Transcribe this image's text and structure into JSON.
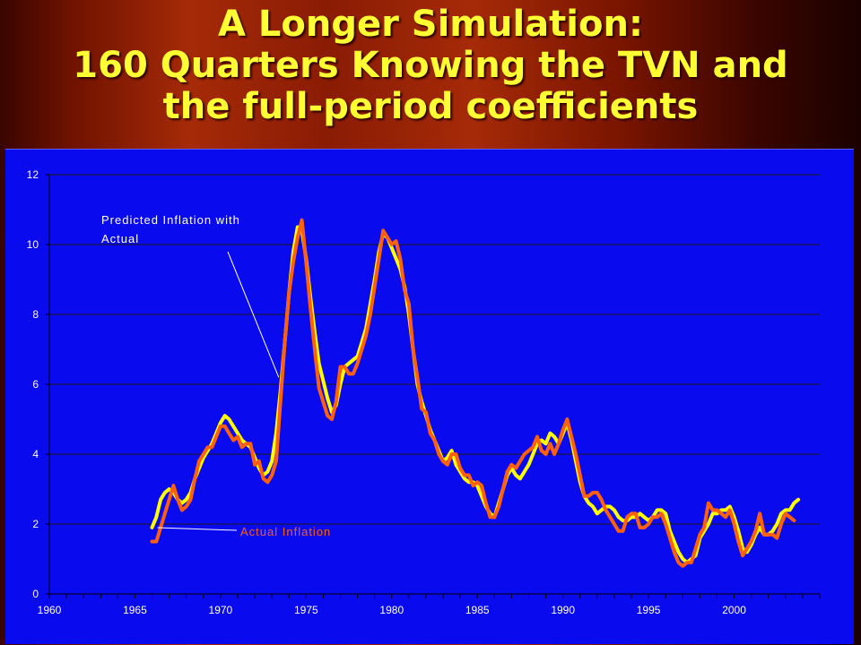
{
  "slide": {
    "title_line1": "A Longer Simulation:",
    "title_line2": "160 Quarters Knowing the TVN and",
    "title_line3": "the full-period coefficients"
  },
  "colors": {
    "background_panel": "#0a0aee",
    "predicted": "#ffff00",
    "actual": "#ff6010",
    "title": "#ffff33"
  },
  "chart_data": {
    "type": "line",
    "xlim": [
      1960,
      2005
    ],
    "ylim": [
      0,
      12
    ],
    "xticks": [
      "1960",
      "1965",
      "1970",
      "1975",
      "1980",
      "1985",
      "1990",
      "1995",
      "2000"
    ],
    "yticks": [
      "0",
      "2",
      "4",
      "6",
      "8",
      "10",
      "12"
    ],
    "grid": "horizontal",
    "annotations": [
      {
        "text": "Predicted Inflation with Actual",
        "series": "predicted",
        "point": [
          1973.4,
          6.2
        ]
      },
      {
        "text": "Actual Inflation",
        "series": "actual",
        "point": [
          1966.0,
          2.0
        ]
      }
    ],
    "series": [
      {
        "name": "predicted",
        "color": "#ffff00",
        "points": [
          [
            1966.0,
            1.9
          ],
          [
            1966.25,
            2.2
          ],
          [
            1966.5,
            2.7
          ],
          [
            1966.75,
            2.9
          ],
          [
            1967.0,
            3.0
          ],
          [
            1967.25,
            2.9
          ],
          [
            1967.5,
            2.7
          ],
          [
            1967.75,
            2.6
          ],
          [
            1968.0,
            2.7
          ],
          [
            1968.25,
            2.9
          ],
          [
            1968.5,
            3.3
          ],
          [
            1968.75,
            3.6
          ],
          [
            1969.0,
            3.9
          ],
          [
            1969.25,
            4.1
          ],
          [
            1969.5,
            4.3
          ],
          [
            1969.75,
            4.6
          ],
          [
            1970.0,
            4.9
          ],
          [
            1970.25,
            5.1
          ],
          [
            1970.5,
            5.0
          ],
          [
            1970.75,
            4.8
          ],
          [
            1971.0,
            4.6
          ],
          [
            1971.25,
            4.4
          ],
          [
            1971.5,
            4.3
          ],
          [
            1971.75,
            4.2
          ],
          [
            1972.0,
            3.9
          ],
          [
            1972.25,
            3.6
          ],
          [
            1972.5,
            3.4
          ],
          [
            1972.75,
            3.5
          ],
          [
            1973.0,
            3.8
          ],
          [
            1973.25,
            4.6
          ],
          [
            1973.5,
            5.8
          ],
          [
            1973.75,
            7.2
          ],
          [
            1974.0,
            8.6
          ],
          [
            1974.25,
            9.8
          ],
          [
            1974.5,
            10.5
          ],
          [
            1974.75,
            10.4
          ],
          [
            1975.0,
            9.6
          ],
          [
            1975.25,
            8.5
          ],
          [
            1975.5,
            7.5
          ],
          [
            1975.75,
            6.6
          ],
          [
            1976.0,
            6.1
          ],
          [
            1976.25,
            5.6
          ],
          [
            1976.5,
            5.2
          ],
          [
            1976.75,
            5.4
          ],
          [
            1977.0,
            6.0
          ],
          [
            1977.25,
            6.5
          ],
          [
            1977.5,
            6.6
          ],
          [
            1977.75,
            6.7
          ],
          [
            1978.0,
            6.8
          ],
          [
            1978.25,
            7.2
          ],
          [
            1978.5,
            7.6
          ],
          [
            1978.75,
            8.3
          ],
          [
            1979.0,
            9.0
          ],
          [
            1979.25,
            9.8
          ],
          [
            1979.5,
            10.3
          ],
          [
            1979.75,
            10.2
          ],
          [
            1980.0,
            9.9
          ],
          [
            1980.25,
            9.6
          ],
          [
            1980.5,
            9.3
          ],
          [
            1980.75,
            8.8
          ],
          [
            1981.0,
            8.0
          ],
          [
            1981.25,
            7.0
          ],
          [
            1981.5,
            6.0
          ],
          [
            1981.75,
            5.5
          ],
          [
            1982.0,
            5.1
          ],
          [
            1982.25,
            4.7
          ],
          [
            1982.5,
            4.4
          ],
          [
            1982.75,
            4.1
          ],
          [
            1983.0,
            3.8
          ],
          [
            1983.25,
            3.9
          ],
          [
            1983.5,
            4.1
          ],
          [
            1983.75,
            3.7
          ],
          [
            1984.0,
            3.5
          ],
          [
            1984.25,
            3.3
          ],
          [
            1984.5,
            3.2
          ],
          [
            1984.75,
            3.2
          ],
          [
            1985.0,
            3.1
          ],
          [
            1985.25,
            2.8
          ],
          [
            1985.5,
            2.5
          ],
          [
            1985.75,
            2.3
          ],
          [
            1986.0,
            2.2
          ],
          [
            1986.25,
            2.6
          ],
          [
            1986.5,
            3.0
          ],
          [
            1986.75,
            3.4
          ],
          [
            1987.0,
            3.6
          ],
          [
            1987.25,
            3.4
          ],
          [
            1987.5,
            3.3
          ],
          [
            1987.75,
            3.5
          ],
          [
            1988.0,
            3.7
          ],
          [
            1988.25,
            4.0
          ],
          [
            1988.5,
            4.3
          ],
          [
            1988.75,
            4.4
          ],
          [
            1989.0,
            4.3
          ],
          [
            1989.25,
            4.6
          ],
          [
            1989.5,
            4.5
          ],
          [
            1989.75,
            4.3
          ],
          [
            1990.0,
            4.6
          ],
          [
            1990.25,
            4.9
          ],
          [
            1990.5,
            4.4
          ],
          [
            1990.75,
            3.8
          ],
          [
            1991.0,
            3.2
          ],
          [
            1991.25,
            2.8
          ],
          [
            1991.5,
            2.6
          ],
          [
            1991.75,
            2.5
          ],
          [
            1992.0,
            2.3
          ],
          [
            1992.25,
            2.4
          ],
          [
            1992.5,
            2.5
          ],
          [
            1992.75,
            2.5
          ],
          [
            1993.0,
            2.4
          ],
          [
            1993.25,
            2.2
          ],
          [
            1993.5,
            2.1
          ],
          [
            1993.75,
            2.1
          ],
          [
            1994.0,
            2.2
          ],
          [
            1994.25,
            2.2
          ],
          [
            1994.5,
            2.3
          ],
          [
            1994.75,
            2.2
          ],
          [
            1995.0,
            2.1
          ],
          [
            1995.25,
            2.2
          ],
          [
            1995.5,
            2.4
          ],
          [
            1995.75,
            2.4
          ],
          [
            1996.0,
            2.3
          ],
          [
            1996.25,
            1.8
          ],
          [
            1996.5,
            1.5
          ],
          [
            1996.75,
            1.2
          ],
          [
            1997.0,
            1.0
          ],
          [
            1997.25,
            0.9
          ],
          [
            1997.5,
            1.0
          ],
          [
            1997.75,
            1.1
          ],
          [
            1998.0,
            1.6
          ],
          [
            1998.25,
            1.8
          ],
          [
            1998.5,
            2.0
          ],
          [
            1998.75,
            2.3
          ],
          [
            1999.0,
            2.3
          ],
          [
            1999.25,
            2.4
          ],
          [
            1999.5,
            2.4
          ],
          [
            1999.75,
            2.5
          ],
          [
            2000.0,
            2.2
          ],
          [
            2000.25,
            1.8
          ],
          [
            2000.5,
            1.3
          ],
          [
            2000.75,
            1.2
          ],
          [
            2001.0,
            1.4
          ],
          [
            2001.25,
            1.7
          ],
          [
            2001.5,
            1.9
          ],
          [
            2001.75,
            1.7
          ],
          [
            2002.0,
            1.7
          ],
          [
            2002.25,
            1.8
          ],
          [
            2002.5,
            2.0
          ],
          [
            2002.75,
            2.3
          ],
          [
            2003.0,
            2.4
          ],
          [
            2003.25,
            2.4
          ],
          [
            2003.5,
            2.6
          ],
          [
            2003.75,
            2.7
          ]
        ]
      },
      {
        "name": "actual",
        "color": "#ff6010",
        "points": [
          [
            1966.0,
            1.5
          ],
          [
            1966.25,
            1.5
          ],
          [
            1966.5,
            1.9
          ],
          [
            1966.75,
            2.3
          ],
          [
            1967.0,
            2.7
          ],
          [
            1967.25,
            3.1
          ],
          [
            1967.5,
            2.7
          ],
          [
            1967.75,
            2.4
          ],
          [
            1968.0,
            2.5
          ],
          [
            1968.25,
            2.7
          ],
          [
            1968.5,
            3.3
          ],
          [
            1968.75,
            3.8
          ],
          [
            1969.0,
            4.0
          ],
          [
            1969.25,
            4.2
          ],
          [
            1969.5,
            4.2
          ],
          [
            1969.75,
            4.5
          ],
          [
            1970.0,
            4.8
          ],
          [
            1970.25,
            4.8
          ],
          [
            1970.5,
            4.6
          ],
          [
            1970.75,
            4.4
          ],
          [
            1971.0,
            4.5
          ],
          [
            1971.25,
            4.2
          ],
          [
            1971.5,
            4.3
          ],
          [
            1971.75,
            4.3
          ],
          [
            1972.0,
            3.7
          ],
          [
            1972.25,
            3.8
          ],
          [
            1972.5,
            3.3
          ],
          [
            1972.75,
            3.2
          ],
          [
            1973.0,
            3.4
          ],
          [
            1973.25,
            3.8
          ],
          [
            1973.5,
            5.5
          ],
          [
            1973.75,
            7.2
          ],
          [
            1974.0,
            8.6
          ],
          [
            1974.25,
            9.5
          ],
          [
            1974.5,
            10.2
          ],
          [
            1974.75,
            10.7
          ],
          [
            1975.0,
            9.5
          ],
          [
            1975.25,
            8.2
          ],
          [
            1975.5,
            7.0
          ],
          [
            1975.75,
            5.9
          ],
          [
            1976.0,
            5.5
          ],
          [
            1976.25,
            5.1
          ],
          [
            1976.5,
            5.0
          ],
          [
            1976.75,
            5.5
          ],
          [
            1977.0,
            6.5
          ],
          [
            1977.25,
            6.5
          ],
          [
            1977.5,
            6.3
          ],
          [
            1977.75,
            6.3
          ],
          [
            1978.0,
            6.6
          ],
          [
            1978.25,
            7.0
          ],
          [
            1978.5,
            7.4
          ],
          [
            1978.75,
            8.0
          ],
          [
            1979.0,
            8.8
          ],
          [
            1979.25,
            9.6
          ],
          [
            1979.5,
            10.4
          ],
          [
            1979.75,
            10.2
          ],
          [
            1980.0,
            10.0
          ],
          [
            1980.25,
            10.1
          ],
          [
            1980.5,
            9.6
          ],
          [
            1980.75,
            8.7
          ],
          [
            1981.0,
            8.3
          ],
          [
            1981.25,
            7.0
          ],
          [
            1981.5,
            6.2
          ],
          [
            1981.75,
            5.3
          ],
          [
            1982.0,
            5.2
          ],
          [
            1982.25,
            4.6
          ],
          [
            1982.5,
            4.4
          ],
          [
            1982.75,
            4.0
          ],
          [
            1983.0,
            3.8
          ],
          [
            1983.25,
            3.7
          ],
          [
            1983.5,
            4.0
          ],
          [
            1983.75,
            4.0
          ],
          [
            1984.0,
            3.6
          ],
          [
            1984.25,
            3.4
          ],
          [
            1984.5,
            3.4
          ],
          [
            1984.75,
            3.1
          ],
          [
            1985.0,
            3.2
          ],
          [
            1985.25,
            3.1
          ],
          [
            1985.5,
            2.6
          ],
          [
            1985.75,
            2.2
          ],
          [
            1986.0,
            2.2
          ],
          [
            1986.25,
            2.5
          ],
          [
            1986.5,
            3.0
          ],
          [
            1986.75,
            3.5
          ],
          [
            1987.0,
            3.7
          ],
          [
            1987.25,
            3.6
          ],
          [
            1987.5,
            3.8
          ],
          [
            1987.75,
            4.0
          ],
          [
            1988.0,
            4.1
          ],
          [
            1988.25,
            4.2
          ],
          [
            1988.5,
            4.5
          ],
          [
            1988.75,
            4.1
          ],
          [
            1989.0,
            4.0
          ],
          [
            1989.25,
            4.3
          ],
          [
            1989.5,
            4.0
          ],
          [
            1989.75,
            4.3
          ],
          [
            1990.0,
            4.7
          ],
          [
            1990.25,
            5.0
          ],
          [
            1990.5,
            4.5
          ],
          [
            1990.75,
            4.0
          ],
          [
            1991.0,
            3.4
          ],
          [
            1991.25,
            2.8
          ],
          [
            1991.5,
            2.8
          ],
          [
            1991.75,
            2.9
          ],
          [
            1992.0,
            2.9
          ],
          [
            1992.25,
            2.7
          ],
          [
            1992.5,
            2.4
          ],
          [
            1992.75,
            2.2
          ],
          [
            1993.0,
            2.0
          ],
          [
            1993.25,
            1.8
          ],
          [
            1993.5,
            1.8
          ],
          [
            1993.75,
            2.2
          ],
          [
            1994.0,
            2.3
          ],
          [
            1994.25,
            2.3
          ],
          [
            1994.5,
            1.9
          ],
          [
            1994.75,
            1.9
          ],
          [
            1995.0,
            2.0
          ],
          [
            1995.25,
            2.2
          ],
          [
            1995.5,
            2.2
          ],
          [
            1995.75,
            2.3
          ],
          [
            1996.0,
            2.0
          ],
          [
            1996.25,
            1.6
          ],
          [
            1996.5,
            1.2
          ],
          [
            1996.75,
            0.9
          ],
          [
            1997.0,
            0.8
          ],
          [
            1997.25,
            0.9
          ],
          [
            1997.5,
            0.9
          ],
          [
            1997.75,
            1.3
          ],
          [
            1998.0,
            1.7
          ],
          [
            1998.25,
            1.9
          ],
          [
            1998.5,
            2.6
          ],
          [
            1998.75,
            2.4
          ],
          [
            1999.0,
            2.4
          ],
          [
            1999.25,
            2.3
          ],
          [
            1999.5,
            2.2
          ],
          [
            1999.75,
            2.4
          ],
          [
            2000.0,
            2.0
          ],
          [
            2000.25,
            1.5
          ],
          [
            2000.5,
            1.1
          ],
          [
            2000.75,
            1.3
          ],
          [
            2001.0,
            1.5
          ],
          [
            2001.25,
            1.8
          ],
          [
            2001.5,
            2.3
          ],
          [
            2001.75,
            1.7
          ],
          [
            2002.0,
            1.7
          ],
          [
            2002.25,
            1.7
          ],
          [
            2002.5,
            1.6
          ],
          [
            2002.75,
            2.0
          ],
          [
            2003.0,
            2.3
          ],
          [
            2003.25,
            2.2
          ],
          [
            2003.5,
            2.1
          ]
        ]
      }
    ]
  }
}
